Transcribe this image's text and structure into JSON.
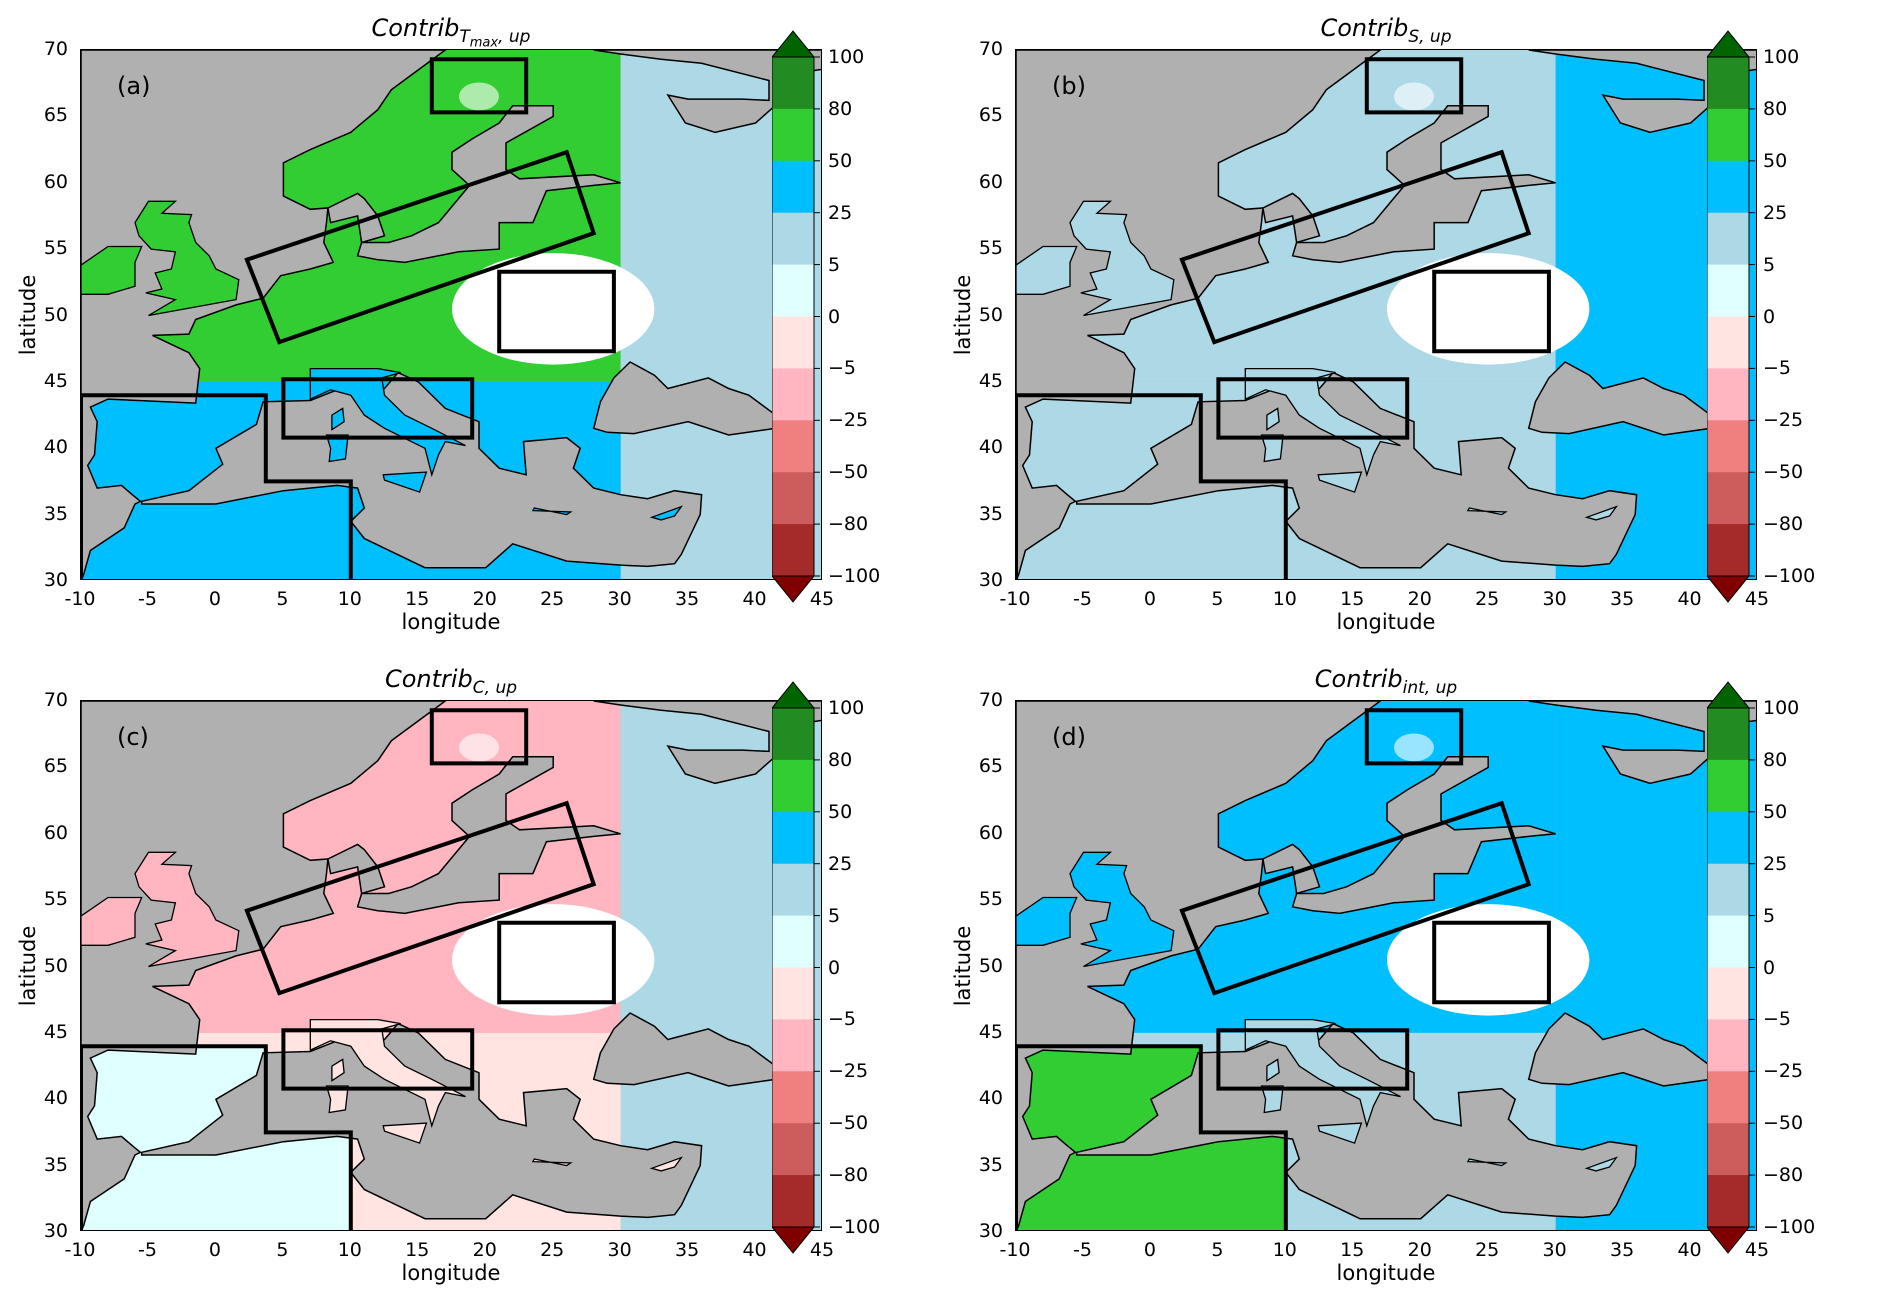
{
  "chart_data": {
    "type": "heatmap",
    "xlabel": "longitude",
    "ylabel": "latitude",
    "xlim": [
      -10,
      45
    ],
    "ylim": [
      30,
      70
    ],
    "xticks": [
      "-10",
      "-5",
      "0",
      "5",
      "10",
      "15",
      "20",
      "25",
      "30",
      "35",
      "40",
      "45"
    ],
    "yticks": [
      "30",
      "35",
      "40",
      "45",
      "50",
      "55",
      "60",
      "65",
      "70"
    ],
    "colorbar": {
      "ticks": [
        "100",
        "80",
        "50",
        "25",
        "5",
        "0",
        "−5",
        "−25",
        "−50",
        "−80",
        "−100"
      ],
      "colors": [
        "#228B22",
        "#32CD32",
        "#00BFFF",
        "#ADD8E6",
        "#E0FFFF",
        "#FFE4E1",
        "#FFB6C1",
        "#F08080",
        "#CD5C5C",
        "#A52A2A"
      ],
      "extend_max_color": "#006400",
      "extend_min_color": "#800000"
    },
    "sea_color": "#b0b0b0",
    "missing_color": "#ffffff",
    "boxes": [
      [
        [
          16,
          69.3
        ],
        [
          23,
          69.3
        ],
        [
          23,
          65.3
        ],
        [
          16,
          65.3
        ]
      ],
      [
        [
          2.3,
          54.2
        ],
        [
          26,
          62.3
        ],
        [
          28,
          56.2
        ],
        [
          4.7,
          48
        ]
      ],
      [
        [
          21,
          53.3
        ],
        [
          29.5,
          53.3
        ],
        [
          29.5,
          47.3
        ],
        [
          21,
          47.3
        ]
      ],
      [
        [
          5,
          45.2
        ],
        [
          19,
          45.2
        ],
        [
          19,
          40.8
        ],
        [
          5,
          40.8
        ]
      ],
      [
        [
          -10,
          44
        ],
        [
          3.7,
          44
        ],
        [
          3.7,
          37.5
        ],
        [
          10,
          37.5
        ],
        [
          10,
          30
        ],
        [
          -10,
          30
        ]
      ]
    ],
    "panels": [
      {
        "label": "(a)",
        "title": "Contrib",
        "sub_a": "T",
        "sub_b": "max",
        "sub_c": ", up",
        "dominant_colors": {
          "northwest": "#32CD32",
          "east": "#ADD8E6",
          "south": "#00BFFF",
          "iberia_north_africa": "#00BFFF"
        }
      },
      {
        "label": "(b)",
        "title": "Contrib",
        "sub_a": "S, up",
        "sub_b": "",
        "sub_c": "",
        "dominant_colors": {
          "northwest": "#ADD8E6",
          "east": "#00BFFF",
          "south": "#ADD8E6",
          "iberia_north_africa": "#ADD8E6"
        }
      },
      {
        "label": "(c)",
        "title": "Contrib",
        "sub_a": "C, up",
        "sub_b": "",
        "sub_c": "",
        "dominant_colors": {
          "northwest": "#FFB6C1",
          "east": "#ADD8E6",
          "south": "#FFE4E1",
          "iberia_north_africa": "#E0FFFF"
        }
      },
      {
        "label": "(d)",
        "title": "Contrib",
        "sub_a": "int, up",
        "sub_b": "",
        "sub_c": "",
        "dominant_colors": {
          "northwest": "#00BFFF",
          "east": "#00BFFF",
          "south": "#ADD8E6",
          "iberia_north_africa": "#32CD32"
        }
      }
    ]
  }
}
